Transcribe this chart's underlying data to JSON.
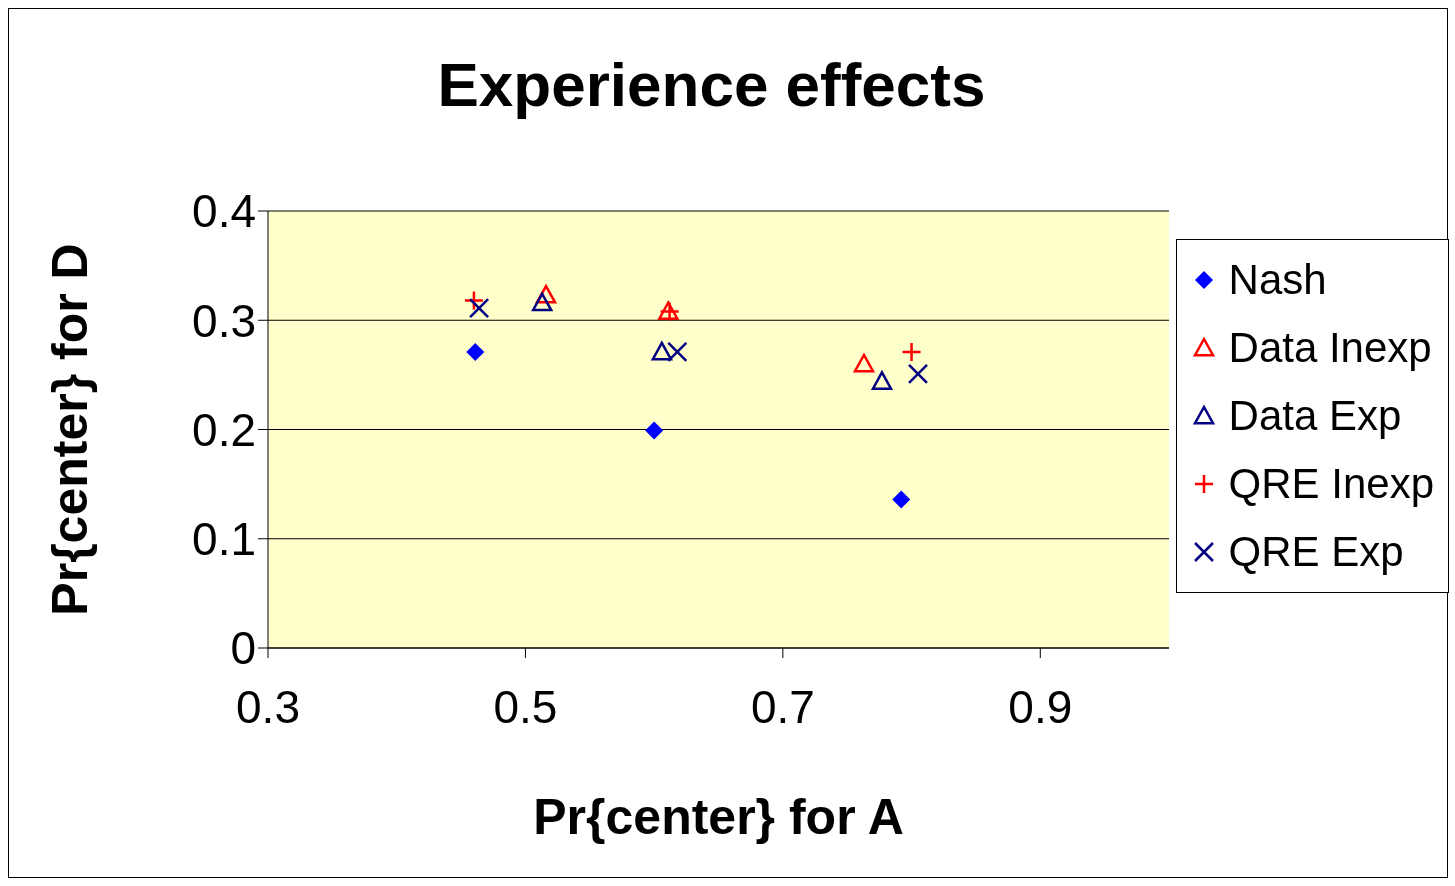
{
  "chart_data": {
    "type": "scatter",
    "title": "Experience effects",
    "xlabel": "Pr{center} for A",
    "ylabel": "Pr{center} for D",
    "xlim": [
      0.3,
      1.0
    ],
    "xticks": [
      0.3,
      0.5,
      0.7,
      0.9
    ],
    "ylim": [
      0,
      0.4
    ],
    "yticks": [
      0,
      0.1,
      0.2,
      0.3,
      0.4
    ],
    "grid": "y",
    "legend": "right",
    "series": [
      {
        "name": "Nash",
        "color": "#0000ff",
        "marker": "diamond",
        "x": [
          0.461,
          0.6,
          0.792
        ],
        "values": [
          0.271,
          0.199,
          0.136
        ]
      },
      {
        "name": "Data Inexp",
        "color": "#ff0000",
        "marker": "triangle",
        "x": [
          0.516,
          0.611,
          0.763
        ],
        "values": [
          0.323,
          0.308,
          0.26
        ]
      },
      {
        "name": "Data Exp",
        "color": "#000080",
        "marker": "triangle",
        "x": [
          0.513,
          0.606,
          0.777
        ],
        "values": [
          0.316,
          0.271,
          0.244
        ]
      },
      {
        "name": "QRE Inexp",
        "color": "#ff0000",
        "marker": "plus",
        "x": [
          0.46,
          0.612,
          0.8
        ],
        "values": [
          0.318,
          0.308,
          0.271
        ]
      },
      {
        "name": "QRE Exp",
        "color": "#000080",
        "marker": "cross",
        "x": [
          0.464,
          0.618,
          0.805
        ],
        "values": [
          0.311,
          0.271,
          0.251
        ]
      }
    ]
  }
}
